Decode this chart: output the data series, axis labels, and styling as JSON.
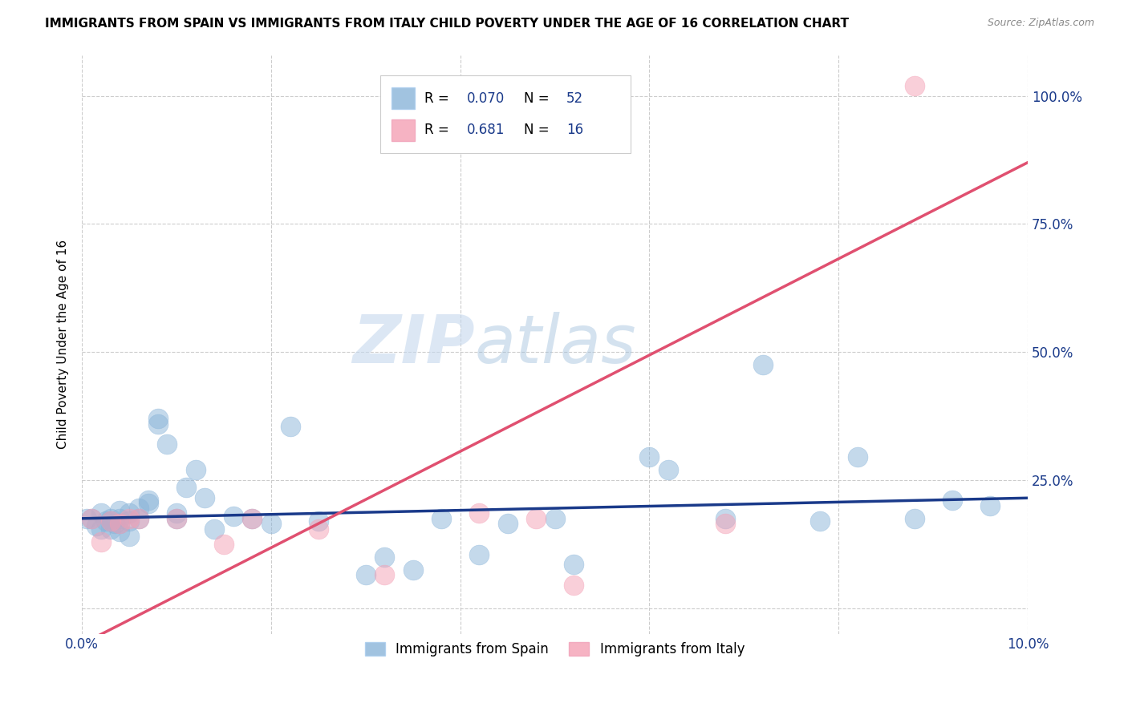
{
  "title": "IMMIGRANTS FROM SPAIN VS IMMIGRANTS FROM ITALY CHILD POVERTY UNDER THE AGE OF 16 CORRELATION CHART",
  "source": "Source: ZipAtlas.com",
  "ylabel": "Child Poverty Under the Age of 16",
  "legend_label_spain": "Immigrants from Spain",
  "legend_label_italy": "Immigrants from Italy",
  "r_spain": 0.07,
  "n_spain": 52,
  "r_italy": 0.681,
  "n_italy": 16,
  "xlim": [
    0.0,
    0.1
  ],
  "ylim": [
    -0.05,
    1.08
  ],
  "xticks": [
    0.0,
    0.02,
    0.04,
    0.06,
    0.08,
    0.1
  ],
  "yticks": [
    0.0,
    0.25,
    0.5,
    0.75,
    1.0
  ],
  "xtick_labels": [
    "0.0%",
    "",
    "",
    "",
    "",
    "10.0%"
  ],
  "ytick_labels_right": [
    "",
    "25.0%",
    "50.0%",
    "75.0%",
    "100.0%"
  ],
  "color_spain": "#8ab4d9",
  "color_italy": "#f4a0b5",
  "line_color_spain": "#1a3a8a",
  "line_color_italy": "#e05070",
  "watermark_zip": "ZIP",
  "watermark_atlas": "atlas",
  "spain_x": [
    0.0005,
    0.001,
    0.0015,
    0.002,
    0.002,
    0.0025,
    0.003,
    0.003,
    0.003,
    0.0035,
    0.004,
    0.004,
    0.004,
    0.004,
    0.005,
    0.005,
    0.005,
    0.006,
    0.006,
    0.007,
    0.007,
    0.008,
    0.008,
    0.009,
    0.01,
    0.01,
    0.011,
    0.012,
    0.013,
    0.014,
    0.016,
    0.018,
    0.02,
    0.022,
    0.025,
    0.03,
    0.032,
    0.035,
    0.038,
    0.042,
    0.045,
    0.05,
    0.052,
    0.06,
    0.062,
    0.068,
    0.072,
    0.078,
    0.082,
    0.088,
    0.092,
    0.096
  ],
  "spain_y": [
    0.175,
    0.175,
    0.16,
    0.185,
    0.155,
    0.17,
    0.175,
    0.155,
    0.17,
    0.165,
    0.175,
    0.15,
    0.19,
    0.165,
    0.14,
    0.185,
    0.17,
    0.195,
    0.175,
    0.205,
    0.21,
    0.37,
    0.36,
    0.32,
    0.175,
    0.185,
    0.235,
    0.27,
    0.215,
    0.155,
    0.18,
    0.175,
    0.165,
    0.355,
    0.17,
    0.065,
    0.1,
    0.075,
    0.175,
    0.105,
    0.165,
    0.175,
    0.085,
    0.295,
    0.27,
    0.175,
    0.475,
    0.17,
    0.295,
    0.175,
    0.21,
    0.2
  ],
  "italy_x": [
    0.001,
    0.002,
    0.003,
    0.004,
    0.005,
    0.006,
    0.01,
    0.015,
    0.018,
    0.025,
    0.032,
    0.042,
    0.048,
    0.052,
    0.068,
    0.088
  ],
  "italy_y": [
    0.175,
    0.13,
    0.17,
    0.165,
    0.175,
    0.175,
    0.175,
    0.125,
    0.175,
    0.155,
    0.065,
    0.185,
    0.175,
    0.045,
    0.165,
    1.02
  ],
  "italy_line_x": [
    0.0,
    0.1
  ],
  "italy_line_y": [
    -0.07,
    0.87
  ],
  "spain_line_x": [
    0.0,
    0.1
  ],
  "spain_line_y": [
    0.175,
    0.215
  ]
}
